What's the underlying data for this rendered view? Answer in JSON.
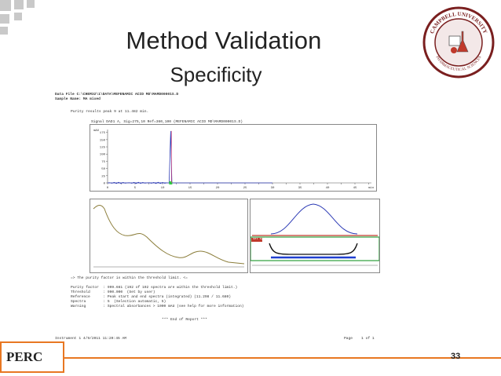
{
  "slide": {
    "title": "Method Validation",
    "subtitle": "Specificity",
    "logo_text": "PERC",
    "page_number": "33",
    "accent_color": "#e87722"
  },
  "seal": {
    "text_top": "CAMPBELL UNIVERSITY",
    "text_bottom": "PHARMACEUTICAL SCIENCES"
  },
  "report": {
    "data_file": "Data File C:\\CHEM32\\1\\DATA\\MEFENAMIC ACID MD\\MAMD00001S.D",
    "sample_name": "Sample Name: MA mixed",
    "purity_results": "Purity results peak 9 at 11.482 min.",
    "signal": "Signal DAD1 A, Sig=275,10 Ref=360,100 (MEFENAMIC ACID MD\\MAMD00001S.D)",
    "yaxis_unit": "mAU",
    "threshold_note": "=> The purity factor is within the threshold limit. <=",
    "purity_factor": "Purity factor  : 999.661 (192 of 192 spectra are within the threshold limit.)",
    "threshold": "Threshold      : 990.000  (Set by user)",
    "reference": "Reference      : Peak start and end spectra (integrated) (11.298 / 11.680)",
    "spectra": "Spectra        : 5  (Selection automatic, 5)",
    "warning": "Warning        : Spectral absorbances > 1000 mAU (see help for more information)",
    "end_report": "*** End of Report ***",
    "instrument": "Instrument 1 4/9/2011 11:20:45 AM",
    "page": "Page    1 of 1",
    "set_by_user": "Set by User"
  },
  "chart_data": [
    {
      "type": "line",
      "title": "Signal DAD1 A, Sig=275,10 Ref=360,100 (MEFENAMIC ACID MD\\MAMD00001S.D)",
      "ylabel": "mAU",
      "x_ticks": [
        "0",
        "2.5",
        "5",
        "7.5",
        "10",
        "12.5",
        "15",
        "17.5",
        "20",
        "22.5",
        "25",
        "27.5",
        "30",
        "32.5",
        "35",
        "37.5",
        "40",
        "42.5",
        "45",
        "47.5",
        "min"
      ],
      "y_ticks": [
        "175",
        "150",
        "125",
        "100",
        "75",
        "50",
        "25",
        "0"
      ],
      "ylim": [
        0,
        185
      ],
      "series": [
        {
          "x": [
            0,
            11.2,
            11.48,
            11.7,
            30
          ],
          "y": [
            0,
            0,
            180,
            0,
            0
          ]
        }
      ]
    }
  ]
}
